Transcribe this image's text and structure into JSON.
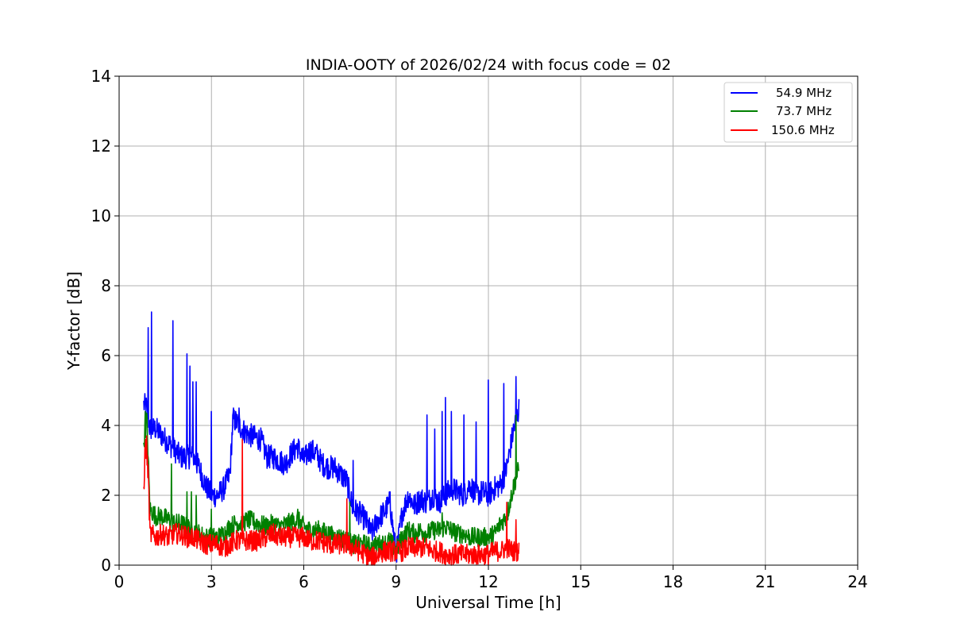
{
  "chart_data": {
    "type": "line",
    "title": "INDIA-OOTY of 2026/02/24 with focus code = 02",
    "xlabel": "Universal Time [h]",
    "ylabel": "Y-factor [dB]",
    "xlim": [
      0,
      24
    ],
    "ylim": [
      0,
      14
    ],
    "xticks": [
      0,
      3,
      6,
      9,
      12,
      15,
      18,
      21,
      24
    ],
    "yticks": [
      0,
      2,
      4,
      6,
      8,
      10,
      12,
      14
    ],
    "grid": true,
    "legend_position": "top-right",
    "series": [
      {
        "name": "54.9 MHz",
        "color": "#0000ff",
        "points": [
          [
            0.8,
            4.6
          ],
          [
            0.9,
            4.5
          ],
          [
            1.0,
            3.9
          ],
          [
            1.2,
            3.9
          ],
          [
            1.4,
            3.7
          ],
          [
            1.6,
            3.5
          ],
          [
            1.8,
            3.3
          ],
          [
            2.0,
            3.1
          ],
          [
            2.2,
            3.1
          ],
          [
            2.4,
            3.1
          ],
          [
            2.6,
            2.8
          ],
          [
            2.8,
            2.3
          ],
          [
            3.0,
            2.0
          ],
          [
            3.2,
            2.0
          ],
          [
            3.4,
            2.2
          ],
          [
            3.6,
            2.6
          ],
          [
            3.7,
            4.2
          ],
          [
            3.9,
            4.0
          ],
          [
            4.1,
            3.8
          ],
          [
            4.3,
            3.7
          ],
          [
            4.6,
            3.6
          ],
          [
            4.8,
            3.1
          ],
          [
            5.0,
            3.1
          ],
          [
            5.2,
            3.0
          ],
          [
            5.4,
            2.9
          ],
          [
            5.6,
            3.2
          ],
          [
            5.8,
            3.4
          ],
          [
            6.0,
            3.0
          ],
          [
            6.2,
            3.3
          ],
          [
            6.4,
            3.2
          ],
          [
            6.6,
            2.9
          ],
          [
            6.8,
            2.8
          ],
          [
            7.0,
            2.8
          ],
          [
            7.2,
            2.6
          ],
          [
            7.4,
            2.4
          ],
          [
            7.6,
            1.6
          ],
          [
            7.8,
            1.5
          ],
          [
            8.0,
            1.3
          ],
          [
            8.2,
            0.9
          ],
          [
            8.4,
            1.3
          ],
          [
            8.6,
            1.5
          ],
          [
            8.8,
            1.8
          ],
          [
            9.0,
            0.3
          ],
          [
            9.2,
            1.5
          ],
          [
            9.4,
            2.0
          ],
          [
            9.6,
            1.7
          ],
          [
            9.8,
            1.9
          ],
          [
            10.0,
            1.8
          ],
          [
            10.2,
            2.0
          ],
          [
            10.4,
            1.8
          ],
          [
            10.6,
            2.0
          ],
          [
            10.8,
            2.2
          ],
          [
            11.0,
            2.1
          ],
          [
            11.2,
            2.0
          ],
          [
            11.4,
            2.3
          ],
          [
            11.6,
            2.0
          ],
          [
            11.8,
            2.1
          ],
          [
            12.0,
            2.0
          ],
          [
            12.2,
            2.2
          ],
          [
            12.4,
            2.3
          ],
          [
            12.6,
            2.8
          ],
          [
            12.8,
            3.8
          ],
          [
            13.0,
            4.5
          ]
        ],
        "spikes": [
          [
            0.95,
            6.8
          ],
          [
            1.05,
            7.25
          ],
          [
            1.75,
            7.0
          ],
          [
            2.2,
            6.05
          ],
          [
            2.3,
            5.7
          ],
          [
            2.4,
            5.25
          ],
          [
            2.5,
            5.25
          ],
          [
            3.0,
            4.4
          ],
          [
            3.9,
            4.5
          ],
          [
            7.6,
            3.0
          ],
          [
            8.8,
            2.1
          ],
          [
            10.0,
            4.3
          ],
          [
            10.25,
            3.9
          ],
          [
            10.5,
            4.4
          ],
          [
            10.6,
            4.8
          ],
          [
            10.8,
            4.4
          ],
          [
            11.2,
            4.3
          ],
          [
            11.6,
            4.1
          ],
          [
            12.0,
            5.3
          ],
          [
            12.5,
            5.2
          ],
          [
            12.9,
            5.4
          ]
        ]
      },
      {
        "name": "73.7 MHz",
        "color": "#008000",
        "points": [
          [
            0.8,
            3.5
          ],
          [
            0.9,
            4.2
          ],
          [
            1.0,
            1.6
          ],
          [
            1.2,
            1.4
          ],
          [
            1.4,
            1.4
          ],
          [
            1.6,
            1.3
          ],
          [
            1.8,
            1.2
          ],
          [
            2.0,
            1.2
          ],
          [
            2.2,
            1.1
          ],
          [
            2.4,
            1.0
          ],
          [
            2.6,
            0.9
          ],
          [
            2.8,
            0.8
          ],
          [
            3.0,
            0.8
          ],
          [
            3.2,
            0.8
          ],
          [
            3.4,
            0.9
          ],
          [
            3.6,
            1.1
          ],
          [
            3.8,
            1.2
          ],
          [
            4.0,
            1.2
          ],
          [
            4.2,
            1.3
          ],
          [
            4.5,
            1.2
          ],
          [
            4.8,
            1.1
          ],
          [
            5.0,
            1.2
          ],
          [
            5.2,
            1.1
          ],
          [
            5.5,
            1.2
          ],
          [
            5.8,
            1.3
          ],
          [
            6.0,
            1.1
          ],
          [
            6.2,
            1.0
          ],
          [
            6.5,
            1.0
          ],
          [
            6.8,
            0.9
          ],
          [
            7.0,
            0.8
          ],
          [
            7.2,
            0.8
          ],
          [
            7.4,
            0.7
          ],
          [
            7.6,
            0.6
          ],
          [
            7.8,
            0.6
          ],
          [
            8.0,
            0.6
          ],
          [
            8.2,
            0.5
          ],
          [
            8.4,
            0.6
          ],
          [
            8.6,
            0.6
          ],
          [
            8.8,
            0.7
          ],
          [
            9.0,
            0.4
          ],
          [
            9.2,
            0.8
          ],
          [
            9.4,
            1.0
          ],
          [
            9.6,
            0.9
          ],
          [
            9.8,
            1.0
          ],
          [
            10.0,
            0.9
          ],
          [
            10.2,
            1.0
          ],
          [
            10.4,
            1.0
          ],
          [
            10.6,
            1.1
          ],
          [
            10.8,
            1.0
          ],
          [
            11.0,
            0.9
          ],
          [
            11.2,
            0.9
          ],
          [
            11.4,
            0.8
          ],
          [
            11.6,
            0.8
          ],
          [
            11.8,
            0.8
          ],
          [
            12.0,
            0.8
          ],
          [
            12.2,
            0.9
          ],
          [
            12.4,
            1.2
          ],
          [
            12.6,
            1.4
          ],
          [
            12.8,
            2.2
          ],
          [
            13.0,
            2.8
          ]
        ],
        "spikes": [
          [
            0.85,
            4.4
          ],
          [
            1.7,
            2.9
          ],
          [
            2.2,
            2.1
          ],
          [
            2.35,
            2.1
          ],
          [
            2.5,
            2.0
          ],
          [
            3.0,
            1.6
          ],
          [
            5.8,
            1.6
          ],
          [
            7.5,
            1.8
          ],
          [
            10.5,
            1.5
          ],
          [
            12.9,
            4.3
          ]
        ]
      },
      {
        "name": "150.6 MHz",
        "color": "#ff0000",
        "points": [
          [
            0.8,
            2.1
          ],
          [
            0.85,
            3.5
          ],
          [
            0.95,
            2.6
          ],
          [
            1.0,
            0.9
          ],
          [
            1.2,
            0.8
          ],
          [
            1.4,
            0.9
          ],
          [
            1.6,
            0.8
          ],
          [
            1.8,
            0.9
          ],
          [
            2.0,
            0.9
          ],
          [
            2.2,
            0.8
          ],
          [
            2.4,
            0.8
          ],
          [
            2.6,
            0.7
          ],
          [
            2.8,
            0.6
          ],
          [
            3.0,
            0.6
          ],
          [
            3.2,
            0.6
          ],
          [
            3.4,
            0.5
          ],
          [
            3.6,
            0.6
          ],
          [
            3.8,
            0.7
          ],
          [
            4.0,
            0.7
          ],
          [
            4.2,
            0.7
          ],
          [
            4.5,
            0.7
          ],
          [
            4.8,
            0.8
          ],
          [
            5.0,
            0.9
          ],
          [
            5.2,
            0.8
          ],
          [
            5.5,
            0.8
          ],
          [
            5.8,
            0.8
          ],
          [
            6.0,
            0.8
          ],
          [
            6.2,
            0.7
          ],
          [
            6.5,
            0.7
          ],
          [
            6.8,
            0.6
          ],
          [
            7.0,
            0.6
          ],
          [
            7.2,
            0.6
          ],
          [
            7.4,
            0.6
          ],
          [
            7.6,
            0.5
          ],
          [
            7.8,
            0.4
          ],
          [
            8.0,
            0.3
          ],
          [
            8.2,
            0.2
          ],
          [
            8.4,
            0.3
          ],
          [
            8.6,
            0.4
          ],
          [
            8.8,
            0.4
          ],
          [
            9.0,
            0.4
          ],
          [
            9.2,
            0.4
          ],
          [
            9.4,
            0.5
          ],
          [
            9.6,
            0.5
          ],
          [
            9.8,
            0.5
          ],
          [
            10.0,
            0.5
          ],
          [
            10.2,
            0.4
          ],
          [
            10.4,
            0.4
          ],
          [
            10.6,
            0.3
          ],
          [
            10.8,
            0.3
          ],
          [
            11.0,
            0.3
          ],
          [
            11.2,
            0.3
          ],
          [
            11.4,
            0.3
          ],
          [
            11.6,
            0.3
          ],
          [
            11.8,
            0.3
          ],
          [
            12.0,
            0.3
          ],
          [
            12.2,
            0.4
          ],
          [
            12.4,
            0.4
          ],
          [
            12.6,
            0.5
          ],
          [
            12.8,
            0.4
          ],
          [
            13.0,
            0.4
          ]
        ],
        "spikes": [
          [
            0.9,
            3.7
          ],
          [
            4.0,
            3.6
          ],
          [
            7.4,
            1.9
          ],
          [
            12.6,
            1.8
          ],
          [
            12.9,
            1.3
          ]
        ]
      }
    ]
  }
}
